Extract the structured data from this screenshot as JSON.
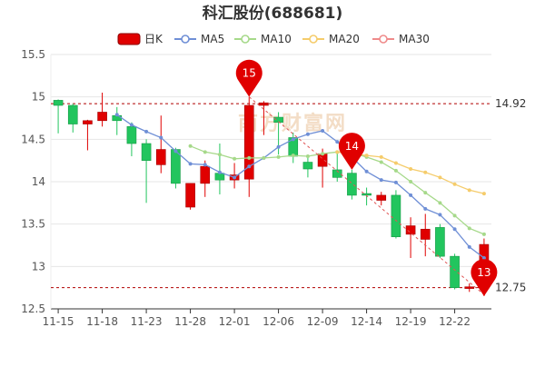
{
  "title": "科汇股份(688681)",
  "watermark": "南方财富网",
  "colors": {
    "up": "#e00000",
    "down": "#22c55e",
    "ma5": "#6f8fd6",
    "ma10": "#a6d98a",
    "ma20": "#f5cc6b",
    "ma30": "#ef8b8b",
    "ref_line": "#b00000",
    "trend": "#e05555"
  },
  "chart_data": {
    "type": "candlestick",
    "title": "科汇股份(688681)",
    "ylim": [
      12.5,
      15.5
    ],
    "yticks": [
      "15.5",
      "15",
      "14.5",
      "14",
      "13.5",
      "13",
      "12.5"
    ],
    "xtick_labels": [
      "11-15",
      "11-18",
      "11-23",
      "11-28",
      "12-01",
      "12-06",
      "12-09",
      "12-14",
      "12-19",
      "12-22"
    ],
    "legend": [
      "日K",
      "MA5",
      "MA10",
      "MA20",
      "MA30"
    ],
    "grid": "horizontal",
    "candles": [
      {
        "date": "11-15",
        "open": 14.96,
        "close": 14.9,
        "high": 14.97,
        "low": 14.57
      },
      {
        "date": "11-16",
        "open": 14.9,
        "close": 14.68,
        "high": 14.92,
        "low": 14.58
      },
      {
        "date": "11-17",
        "open": 14.68,
        "close": 14.72,
        "high": 14.73,
        "low": 14.37
      },
      {
        "date": "11-18",
        "open": 14.72,
        "close": 14.82,
        "high": 15.05,
        "low": 14.65
      },
      {
        "date": "11-21",
        "open": 14.78,
        "close": 14.72,
        "high": 14.88,
        "low": 14.55
      },
      {
        "date": "11-22",
        "open": 14.65,
        "close": 14.45,
        "high": 14.7,
        "low": 14.3
      },
      {
        "date": "11-23",
        "open": 14.45,
        "close": 14.25,
        "high": 14.5,
        "low": 13.75
      },
      {
        "date": "11-24",
        "open": 14.2,
        "close": 14.38,
        "high": 14.78,
        "low": 14.1
      },
      {
        "date": "11-25",
        "open": 14.38,
        "close": 13.98,
        "high": 14.4,
        "low": 13.92
      },
      {
        "date": "11-28",
        "open": 13.7,
        "close": 13.98,
        "high": 13.98,
        "low": 13.67
      },
      {
        "date": "11-29",
        "open": 13.98,
        "close": 14.18,
        "high": 14.25,
        "low": 13.82
      },
      {
        "date": "11-30",
        "open": 14.1,
        "close": 14.02,
        "high": 14.45,
        "low": 13.85
      },
      {
        "date": "12-01",
        "open": 14.02,
        "close": 14.08,
        "high": 14.22,
        "low": 13.92
      },
      {
        "date": "12-02",
        "open": 14.03,
        "close": 14.9,
        "high": 15.0,
        "low": 13.82
      },
      {
        "date": "12-05",
        "open": 14.9,
        "close": 14.93,
        "high": 14.95,
        "low": 14.55
      },
      {
        "date": "12-06",
        "open": 14.76,
        "close": 14.7,
        "high": 14.82,
        "low": 14.32
      },
      {
        "date": "12-07",
        "open": 14.52,
        "close": 14.3,
        "high": 14.58,
        "low": 14.22
      },
      {
        "date": "12-08",
        "open": 14.23,
        "close": 14.15,
        "high": 14.29,
        "low": 14.05
      },
      {
        "date": "12-09",
        "open": 14.18,
        "close": 14.33,
        "high": 14.39,
        "low": 13.93
      },
      {
        "date": "12-12",
        "open": 14.14,
        "close": 14.05,
        "high": 14.36,
        "low": 14.0
      },
      {
        "date": "12-13",
        "open": 14.1,
        "close": 13.84,
        "high": 14.14,
        "low": 13.79
      },
      {
        "date": "12-14",
        "open": 13.86,
        "close": 13.84,
        "high": 13.93,
        "low": 13.72
      },
      {
        "date": "12-15",
        "open": 13.78,
        "close": 13.84,
        "high": 13.88,
        "low": 13.72
      },
      {
        "date": "12-16",
        "open": 13.84,
        "close": 13.35,
        "high": 13.9,
        "low": 13.33
      },
      {
        "date": "12-19",
        "open": 13.38,
        "close": 13.48,
        "high": 13.58,
        "low": 13.1
      },
      {
        "date": "12-20",
        "open": 13.32,
        "close": 13.44,
        "high": 13.62,
        "low": 13.12
      },
      {
        "date": "12-21",
        "open": 13.46,
        "close": 13.12,
        "high": 13.5,
        "low": 13.1
      },
      {
        "date": "12-22",
        "open": 13.12,
        "close": 12.75,
        "high": 13.15,
        "low": 12.73
      },
      {
        "date": "12-23",
        "open": 12.74,
        "close": 12.76,
        "high": 12.8,
        "low": 12.7
      },
      {
        "date": "12-26",
        "open": 12.98,
        "close": 13.26,
        "high": 13.33,
        "low": 12.65
      }
    ],
    "ma5": [
      null,
      null,
      null,
      null,
      14.79,
      14.67,
      14.59,
      14.52,
      14.36,
      14.21,
      14.2,
      14.11,
      14.05,
      14.18,
      14.28,
      14.41,
      14.5,
      14.56,
      14.6,
      14.47,
      14.29,
      14.12,
      14.02,
      13.99,
      13.84,
      13.68,
      13.61,
      13.44,
      13.23,
      13.1
    ],
    "ma10": [
      null,
      null,
      null,
      null,
      null,
      null,
      null,
      null,
      null,
      14.42,
      14.35,
      14.32,
      14.27,
      14.28,
      14.28,
      14.29,
      14.31,
      14.3,
      14.33,
      14.35,
      14.34,
      14.29,
      14.23,
      14.13,
      14.0,
      13.87,
      13.75,
      13.6,
      13.45,
      13.38
    ],
    "ma20": [
      null,
      null,
      null,
      null,
      null,
      null,
      null,
      null,
      null,
      null,
      null,
      null,
      null,
      null,
      null,
      null,
      null,
      null,
      null,
      14.35,
      14.33,
      14.31,
      14.29,
      14.22,
      14.15,
      14.11,
      14.05,
      13.97,
      13.9,
      13.86
    ],
    "ma30": [],
    "reference_lines": [
      {
        "value": 14.92,
        "label": "14.92"
      },
      {
        "value": 12.75,
        "label": "12.75"
      }
    ],
    "markers": [
      {
        "index": 13,
        "value": 15.0,
        "label": "15"
      },
      {
        "index": 20,
        "value": 14.14,
        "label": "14"
      },
      {
        "index": 29,
        "value": 12.65,
        "label": "13"
      }
    ],
    "trend_line": {
      "from_index": 13,
      "from_value": 15.0,
      "to_index": 29,
      "to_value": 12.65
    }
  }
}
